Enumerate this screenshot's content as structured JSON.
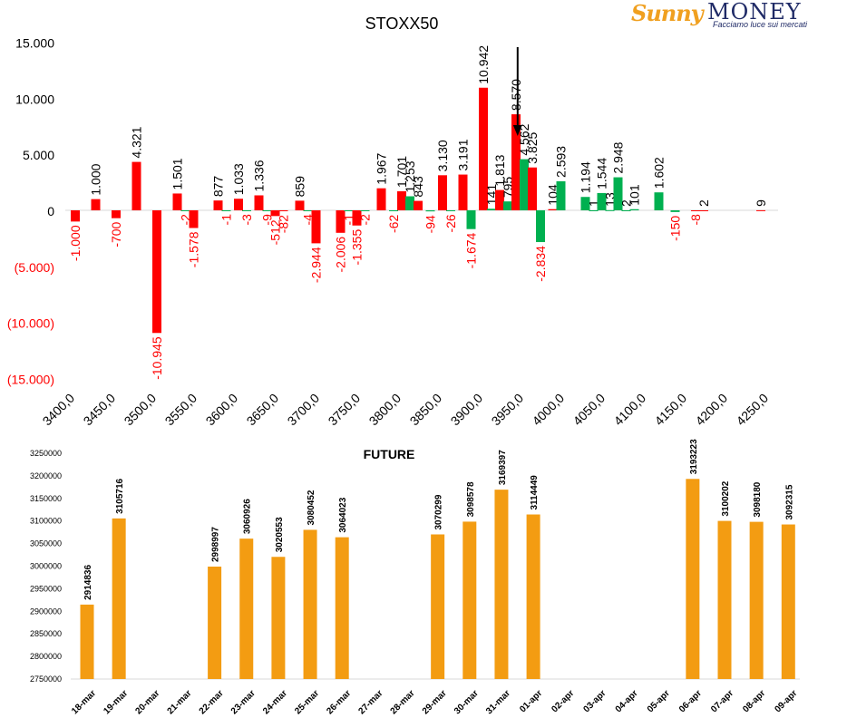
{
  "logo": {
    "brand": "Sunny",
    "name": "MONEY",
    "tagline": "Facciamo luce sui mercati"
  },
  "chart_data": [
    {
      "type": "bar",
      "title": "STOXX50",
      "y_ticks": [
        "15.000",
        "10.000",
        "5.000",
        "0",
        "(5.000)",
        "(10.000)",
        "(15.000)"
      ],
      "y_tick_values": [
        15000,
        10000,
        5000,
        0,
        -5000,
        -10000,
        -15000
      ],
      "ylim": [
        -15000,
        15000
      ],
      "x_ticks": [
        "3400,0",
        "3450,0",
        "3500,0",
        "3550,0",
        "3600,0",
        "3650,0",
        "3700,0",
        "3750,0",
        "3800,0",
        "3850,0",
        "3900,0",
        "3950,0",
        "4000,0",
        "4050,0",
        "4100,0",
        "4150,0",
        "4200,0",
        "4250,0"
      ],
      "xlim": [
        3400,
        4250
      ],
      "annotation": "down-arrow at 3950",
      "colors": {
        "red": "#ff0000",
        "green": "#00b050",
        "positive_label": "#000000",
        "negative_label": "#ff0000"
      },
      "bars": [
        {
          "x": 3400,
          "value": -1000,
          "label": "-1.000",
          "color": "red"
        },
        {
          "x": 3425,
          "value": 1000,
          "label": "1.000",
          "color": "red"
        },
        {
          "x": 3450,
          "value": -700,
          "label": "-700",
          "color": "red"
        },
        {
          "x": 3475,
          "value": 4321,
          "label": "4.321",
          "color": "red"
        },
        {
          "x": 3500,
          "value": -10945,
          "label": "-10.945",
          "color": "red"
        },
        {
          "x": 3525,
          "value": 1501,
          "label": "1.501",
          "color": "red"
        },
        {
          "x": 3535,
          "value": -2,
          "label": "-2",
          "color": "green"
        },
        {
          "x": 3545,
          "value": -1578,
          "label": "-1.578",
          "color": "red"
        },
        {
          "x": 3575,
          "value": 877,
          "label": "877",
          "color": "red"
        },
        {
          "x": 3585,
          "value": -1,
          "label": "-1",
          "color": "green"
        },
        {
          "x": 3600,
          "value": 1033,
          "label": "1.033",
          "color": "red"
        },
        {
          "x": 3610,
          "value": -3,
          "label": "-3",
          "color": "green"
        },
        {
          "x": 3625,
          "value": 1336,
          "label": "1.336",
          "color": "red"
        },
        {
          "x": 3635,
          "value": -9,
          "label": "-9",
          "color": "green"
        },
        {
          "x": 3645,
          "value": -512,
          "label": "-512",
          "color": "red"
        },
        {
          "x": 3655,
          "value": -82,
          "label": "-82",
          "color": "red"
        },
        {
          "x": 3675,
          "value": 859,
          "label": "859",
          "color": "red"
        },
        {
          "x": 3685,
          "value": -4,
          "label": "-4",
          "color": "green"
        },
        {
          "x": 3695,
          "value": -2944,
          "label": "-2.944",
          "color": "red"
        },
        {
          "x": 3725,
          "value": -2006,
          "label": "-2.006",
          "color": "red"
        },
        {
          "x": 3735,
          "value": -1,
          "label": "-1",
          "color": "green"
        },
        {
          "x": 3745,
          "value": -1355,
          "label": "-1.355",
          "color": "red"
        },
        {
          "x": 3755,
          "value": -2,
          "label": "-2",
          "color": "green"
        },
        {
          "x": 3775,
          "value": 1967,
          "label": "1.967",
          "color": "red"
        },
        {
          "x": 3790,
          "value": -62,
          "label": "-62",
          "color": "green"
        },
        {
          "x": 3800,
          "value": 1701,
          "label": "1.701",
          "color": "red"
        },
        {
          "x": 3810,
          "value": 1253,
          "label": "1.253",
          "color": "green"
        },
        {
          "x": 3820,
          "value": 843,
          "label": "843",
          "color": "red"
        },
        {
          "x": 3835,
          "value": -94,
          "label": "-94",
          "color": "green"
        },
        {
          "x": 3850,
          "value": 3130,
          "label": "3.130",
          "color": "red"
        },
        {
          "x": 3860,
          "value": -26,
          "label": "-26",
          "color": "green"
        },
        {
          "x": 3875,
          "value": 3191,
          "label": "3.191",
          "color": "red"
        },
        {
          "x": 3885,
          "value": -1674,
          "label": "-1.674",
          "color": "green"
        },
        {
          "x": 3900,
          "value": 10942,
          "label": "10.942",
          "color": "red"
        },
        {
          "x": 3910,
          "value": 141,
          "label": "141",
          "color": "green"
        },
        {
          "x": 3920,
          "value": 1813,
          "label": "1.813",
          "color": "red"
        },
        {
          "x": 3930,
          "value": 795,
          "label": "795",
          "color": "green"
        },
        {
          "x": 3940,
          "value": 8570,
          "label": "8.570",
          "color": "red"
        },
        {
          "x": 3950,
          "value": 4562,
          "label": "4.562",
          "color": "green"
        },
        {
          "x": 3960,
          "value": 3825,
          "label": "3.825",
          "color": "red"
        },
        {
          "x": 3970,
          "value": -2834,
          "label": "-2.834",
          "color": "green"
        },
        {
          "x": 3985,
          "value": 104,
          "label": "104",
          "color": "red"
        },
        {
          "x": 3995,
          "value": 2593,
          "label": "2.593",
          "color": "green"
        },
        {
          "x": 4025,
          "value": 1194,
          "label": "1.194",
          "color": "green"
        },
        {
          "x": 4035,
          "value": 1,
          "label": "1",
          "color": "green"
        },
        {
          "x": 4045,
          "value": 1544,
          "label": "1.544",
          "color": "green"
        },
        {
          "x": 4055,
          "value": 13,
          "label": "13",
          "color": "green"
        },
        {
          "x": 4065,
          "value": 2948,
          "label": "2.948",
          "color": "green"
        },
        {
          "x": 4075,
          "value": 2,
          "label": "2",
          "color": "green"
        },
        {
          "x": 4085,
          "value": 101,
          "label": "101",
          "color": "green"
        },
        {
          "x": 4115,
          "value": 1602,
          "label": "1.602",
          "color": "green"
        },
        {
          "x": 4135,
          "value": -150,
          "label": "-150",
          "color": "green"
        },
        {
          "x": 4160,
          "value": -8,
          "label": "-8",
          "color": "red"
        },
        {
          "x": 4170,
          "value": 2,
          "label": "2",
          "color": "red"
        },
        {
          "x": 4240,
          "value": 9,
          "label": "9",
          "color": "red"
        }
      ]
    },
    {
      "type": "bar",
      "title": "FUTURE",
      "ylim": [
        2750000,
        3250000
      ],
      "y_ticks": [
        "3250000",
        "3200000",
        "3150000",
        "3100000",
        "3050000",
        "3000000",
        "2950000",
        "2900000",
        "2850000",
        "2800000",
        "2750000"
      ],
      "y_tick_values": [
        3250000,
        3200000,
        3150000,
        3100000,
        3050000,
        3000000,
        2950000,
        2900000,
        2850000,
        2800000,
        2750000
      ],
      "color": "#f39c12",
      "categories": [
        "18-mar",
        "19-mar",
        "20-mar",
        "21-mar",
        "22-mar",
        "23-mar",
        "24-mar",
        "25-mar",
        "26-mar",
        "27-mar",
        "28-mar",
        "29-mar",
        "30-mar",
        "31-mar",
        "01-apr",
        "02-apr",
        "03-apr",
        "04-apr",
        "05-apr",
        "06-apr",
        "07-apr",
        "08-apr",
        "09-apr"
      ],
      "values": [
        2914836,
        3105716,
        null,
        null,
        2998997,
        3060926,
        3020553,
        3080452,
        3064023,
        null,
        null,
        3070299,
        3098578,
        3169397,
        3114449,
        null,
        null,
        null,
        null,
        3193223,
        3100202,
        3098180,
        3092315
      ],
      "labels": [
        "2914836",
        "3105716",
        "",
        "",
        "2998997",
        "3060926",
        "3020553",
        "3080452",
        "3064023",
        "",
        "",
        "3070299",
        "3098578",
        "3169397",
        "3114449",
        "",
        "",
        "",
        "",
        "3193223",
        "3100202",
        "3098180",
        "3092315"
      ]
    }
  ]
}
